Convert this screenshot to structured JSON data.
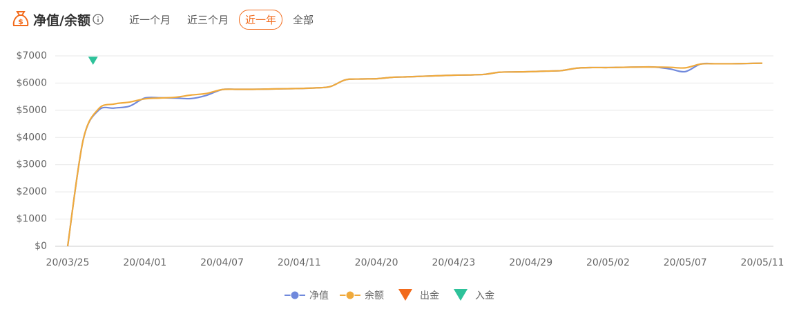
{
  "header": {
    "title": "净值/余额",
    "tabs": [
      "近一个月",
      "近三个月",
      "近一年",
      "全部"
    ],
    "active_tab": 2
  },
  "chart_data": {
    "type": "line",
    "categories": [
      "20/03/25",
      null,
      null,
      null,
      null,
      "20/04/01",
      null,
      null,
      null,
      null,
      "20/04/07",
      null,
      null,
      null,
      null,
      "20/04/11",
      null,
      null,
      null,
      null,
      "20/04/20",
      null,
      null,
      null,
      null,
      "20/04/23",
      null,
      null,
      null,
      null,
      "20/04/29",
      null,
      null,
      null,
      null,
      "20/05/02",
      null,
      null,
      null,
      null,
      "20/05/07",
      null,
      null,
      null,
      null,
      "20/05/11"
    ],
    "series": [
      {
        "name": "净值",
        "color": "#7089dc",
        "symbol": "line",
        "values": [
          0,
          3900,
          5000,
          5080,
          5150,
          5450,
          5460,
          5450,
          5430,
          5550,
          5760,
          5770,
          5770,
          5780,
          5790,
          5800,
          5820,
          5870,
          6120,
          6150,
          6160,
          6210,
          6230,
          6250,
          6270,
          6290,
          6300,
          6320,
          6400,
          6410,
          6420,
          6440,
          6460,
          6550,
          6570,
          6570,
          6580,
          6590,
          6590,
          6520,
          6420,
          6700,
          6710,
          6710,
          6720,
          6730
        ]
      },
      {
        "name": "余额",
        "color": "#f0aa3c",
        "symbol": "line",
        "values": [
          0,
          3900,
          5050,
          5230,
          5300,
          5420,
          5450,
          5480,
          5560,
          5620,
          5760,
          5770,
          5770,
          5780,
          5790,
          5800,
          5820,
          5870,
          6120,
          6150,
          6160,
          6210,
          6230,
          6250,
          6270,
          6290,
          6300,
          6320,
          6400,
          6410,
          6420,
          6440,
          6460,
          6550,
          6570,
          6570,
          6580,
          6590,
          6590,
          6580,
          6560,
          6700,
          6710,
          6710,
          6720,
          6730
        ]
      },
      {
        "name": "出金",
        "color": "#f26a1b",
        "symbol": "triangle-down",
        "values": [
          null,
          null,
          null,
          null,
          null,
          null,
          null,
          null,
          null,
          null,
          null,
          null,
          null,
          null,
          null,
          null,
          null,
          null,
          null,
          null,
          null,
          null,
          null,
          null,
          null,
          null,
          null,
          null,
          null,
          null,
          null,
          null,
          null,
          null,
          null,
          null,
          null,
          null,
          null,
          null,
          null,
          null,
          null,
          null,
          null,
          null
        ]
      },
      {
        "name": "入金",
        "color": "#2ec29a",
        "symbol": "triangle-down",
        "values": [
          null,
          null,
          6830,
          null,
          null,
          null,
          null,
          null,
          null,
          null,
          null,
          null,
          null,
          null,
          null,
          null,
          null,
          null,
          null,
          null,
          null,
          null,
          null,
          null,
          null,
          null,
          null,
          null,
          null,
          null,
          null,
          null,
          null,
          null,
          null,
          null,
          null,
          null,
          null,
          null,
          null,
          null,
          null,
          null,
          null,
          null
        ]
      }
    ],
    "ylim": [
      0,
      7000
    ],
    "yticks": [
      {
        "value": 0,
        "label": "$0"
      },
      {
        "value": 1000,
        "label": "$1000"
      },
      {
        "value": 2000,
        "label": "$2000"
      },
      {
        "value": 3000,
        "label": "$3000"
      },
      {
        "value": 4000,
        "label": "$4000"
      },
      {
        "value": 5000,
        "label": "$5000"
      },
      {
        "value": 6000,
        "label": "$6000"
      },
      {
        "value": 7000,
        "label": "$7000"
      }
    ],
    "grid": true
  }
}
